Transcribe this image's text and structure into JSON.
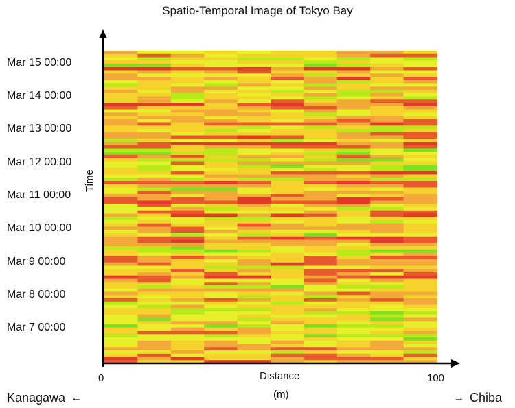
{
  "chart_data": {
    "type": "heatmap",
    "title": "Spatio-Temporal Image of Tokyo Bay",
    "xlabel": "Distance",
    "xunit": "(m)",
    "ylabel": "Time",
    "x_ticks": [
      "0",
      "100"
    ],
    "xlim": [
      0,
      100
    ],
    "y_ticks": [
      "Mar 7 00:00",
      "Mar 8 00:00",
      "Mar 9 00:00",
      "Mar 10 00:00",
      "Mar 11 00:00",
      "Mar 12 00:00",
      "Mar 13 00:00",
      "Mar 14 00:00",
      "Mar 15 00:00"
    ],
    "left_direction": "Kanagawa",
    "right_direction": "Chiba",
    "color_scale": [
      "#7ee01e",
      "#b8ea1a",
      "#e6ef2a",
      "#f6d22c",
      "#f2a93a",
      "#e85a2e",
      "#e23a28"
    ],
    "columns": 10,
    "rows": 96,
    "seed": 20150315
  }
}
